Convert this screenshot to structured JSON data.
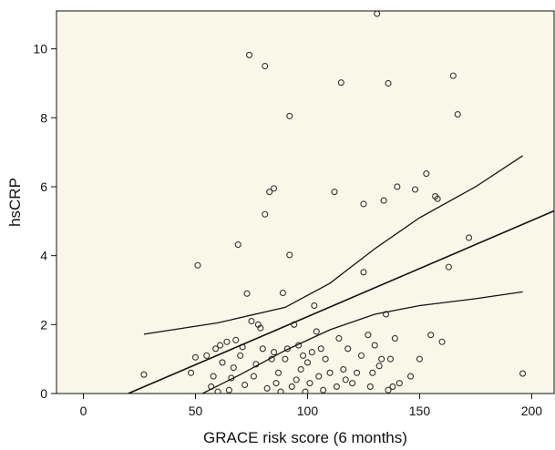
{
  "chart_data": {
    "type": "scatter",
    "title": "",
    "xlabel": "GRACE risk score (6 months)",
    "ylabel": "hsCRP",
    "xlim": [
      -12,
      210
    ],
    "ylim": [
      0,
      11.1
    ],
    "xticks": [
      0,
      50,
      100,
      150,
      200
    ],
    "yticks": [
      0,
      2,
      4,
      6,
      8,
      10
    ],
    "grid": false,
    "plot_background": "#f9f7e8",
    "points": [
      [
        27,
        0.55
      ],
      [
        48,
        0.6
      ],
      [
        50,
        1.05
      ],
      [
        51,
        3.72
      ],
      [
        55,
        1.1
      ],
      [
        57,
        0.2
      ],
      [
        58,
        0.5
      ],
      [
        59,
        1.3
      ],
      [
        60,
        0.05
      ],
      [
        61,
        1.4
      ],
      [
        62,
        0.9
      ],
      [
        64,
        1.5
      ],
      [
        65,
        0.1
      ],
      [
        66,
        0.45
      ],
      [
        67,
        0.75
      ],
      [
        68,
        1.55
      ],
      [
        69,
        4.32
      ],
      [
        70,
        1.1
      ],
      [
        71,
        1.35
      ],
      [
        72,
        0.25
      ],
      [
        73,
        2.9
      ],
      [
        74,
        9.82
      ],
      [
        75,
        2.1
      ],
      [
        76,
        0.5
      ],
      [
        77,
        0.85
      ],
      [
        78,
        2.0
      ],
      [
        79,
        1.9
      ],
      [
        80,
        1.3
      ],
      [
        81,
        9.5
      ],
      [
        81,
        5.2
      ],
      [
        82,
        0.15
      ],
      [
        83,
        5.85
      ],
      [
        84,
        1.0
      ],
      [
        85,
        1.2
      ],
      [
        85,
        5.95
      ],
      [
        86,
        0.3
      ],
      [
        87,
        0.6
      ],
      [
        88,
        0.05
      ],
      [
        89,
        2.92
      ],
      [
        90,
        1.0
      ],
      [
        91,
        1.3
      ],
      [
        92,
        4.02
      ],
      [
        92,
        8.05
      ],
      [
        93,
        0.2
      ],
      [
        94,
        2.0
      ],
      [
        95,
        0.4
      ],
      [
        96,
        1.4
      ],
      [
        97,
        0.7
      ],
      [
        98,
        1.1
      ],
      [
        99,
        0.05
      ],
      [
        100,
        0.9
      ],
      [
        101,
        0.3
      ],
      [
        102,
        1.2
      ],
      [
        103,
        2.55
      ],
      [
        104,
        1.8
      ],
      [
        105,
        0.5
      ],
      [
        106,
        1.3
      ],
      [
        107,
        0.1
      ],
      [
        108,
        1.0
      ],
      [
        110,
        0.6
      ],
      [
        112,
        5.85
      ],
      [
        113,
        0.2
      ],
      [
        114,
        1.6
      ],
      [
        115,
        9.02
      ],
      [
        116,
        0.7
      ],
      [
        117,
        0.4
      ],
      [
        118,
        1.3
      ],
      [
        120,
        0.3
      ],
      [
        122,
        0.6
      ],
      [
        124,
        1.1
      ],
      [
        125,
        3.52
      ],
      [
        125,
        5.5
      ],
      [
        127,
        1.7
      ],
      [
        128,
        0.2
      ],
      [
        129,
        0.6
      ],
      [
        130,
        1.4
      ],
      [
        131,
        11.02
      ],
      [
        132,
        0.8
      ],
      [
        133,
        1.0
      ],
      [
        134,
        5.6
      ],
      [
        135,
        2.3
      ],
      [
        136,
        9.0
      ],
      [
        136,
        0.1
      ],
      [
        137,
        1.0
      ],
      [
        138,
        0.2
      ],
      [
        139,
        1.6
      ],
      [
        140,
        6.0
      ],
      [
        141,
        0.3
      ],
      [
        146,
        0.5
      ],
      [
        148,
        5.92
      ],
      [
        150,
        1.0
      ],
      [
        153,
        6.38
      ],
      [
        155,
        1.7
      ],
      [
        157,
        5.72
      ],
      [
        158,
        5.65
      ],
      [
        160,
        1.5
      ],
      [
        163,
        3.67
      ],
      [
        165,
        9.22
      ],
      [
        167,
        8.1
      ],
      [
        172,
        4.52
      ],
      [
        196,
        0.58
      ]
    ],
    "fit_line": {
      "x": [
        20,
        210
      ],
      "y": [
        0,
        5.3
      ]
    },
    "ci_upper": {
      "x": [
        27,
        60,
        90,
        110,
        130,
        150,
        175,
        196
      ],
      "y": [
        1.72,
        2.05,
        2.5,
        3.2,
        4.2,
        5.1,
        6.0,
        6.9
      ]
    },
    "ci_lower": {
      "x": [
        27,
        50,
        70,
        90,
        110,
        130,
        150,
        175,
        196
      ],
      "y": [
        -0.6,
        -0.1,
        0.55,
        1.25,
        1.85,
        2.3,
        2.55,
        2.75,
        2.95
      ]
    }
  }
}
